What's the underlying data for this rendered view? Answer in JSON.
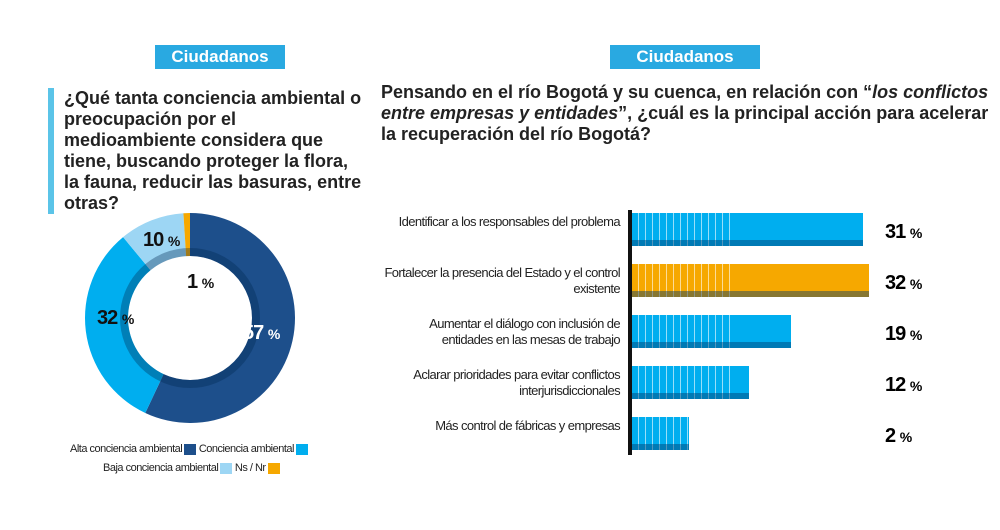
{
  "left": {
    "badge": "Ciudadanos",
    "question": "¿Qué tanta conciencia ambiental o preocupación por el medioambiente considera que tiene, buscando proteger la flora, la fauna, reducir las basuras, entre otras?"
  },
  "right": {
    "badge": "Ciudadanos",
    "question_a": "Pensando en el río Bogotá y su cuenca, en relación con “",
    "question_em": "los conflictos entre empresas y entidades",
    "question_b": "”, ¿cuál es la principal acción para acelerar la recuperación del río Bogotá?"
  },
  "chart_data": [
    {
      "type": "pie",
      "donut": true,
      "series": [
        {
          "name": "Alta conciencia ambiental",
          "value": 57,
          "label": "57",
          "color": "#1d4f8b"
        },
        {
          "name": "Conciencia ambiental",
          "value": 32,
          "label": "32",
          "color": "#00aeef"
        },
        {
          "name": "Baja conciencia ambiental",
          "value": 10,
          "label": "10",
          "color": "#9dd6f4"
        },
        {
          "name": "Ns / Nr",
          "value": 1,
          "label": "1",
          "color": "#f6a800"
        }
      ],
      "unit": "%",
      "legend": "bottom"
    },
    {
      "type": "bar",
      "orientation": "horizontal",
      "categories": [
        "Identificar a los responsables del problema",
        "Fortalecer la presencia del Estado y el control existente",
        "Aumentar el diálogo con inclusión de entidades en las mesas de trabajo",
        "Aclarar prioridades para evitar conflictos interjurisdiccionales",
        "Más control de fábricas y empresas"
      ],
      "values": [
        31,
        32,
        19,
        12,
        2
      ],
      "labels": [
        "31",
        "32",
        "19",
        "12",
        "2"
      ],
      "unit": "%",
      "colors": [
        "#00aeef",
        "#f6a800",
        "#00aeef",
        "#00aeef",
        "#00aeef"
      ]
    }
  ]
}
